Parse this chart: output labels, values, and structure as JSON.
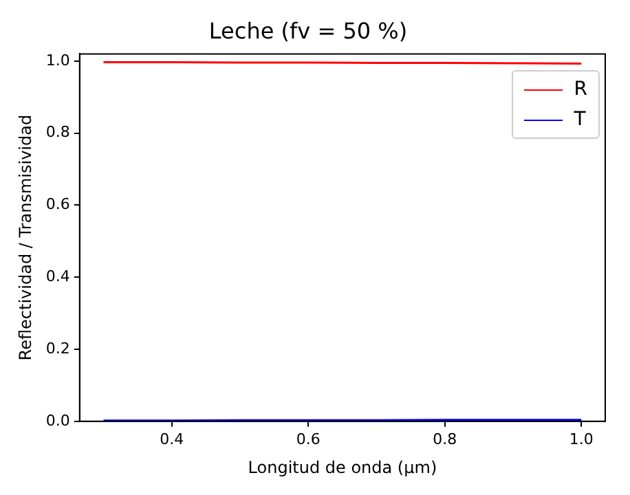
{
  "chart_data": {
    "type": "line",
    "title": "Leche (fv = 50 %)",
    "xlabel": "Longitud de onda (μm)",
    "ylabel": "Reflectividad / Transmisividad",
    "x": [
      0.3,
      0.4,
      0.5,
      0.6,
      0.7,
      0.8,
      0.9,
      1.0
    ],
    "series": [
      {
        "name": "R",
        "color": "#ff0000",
        "values": [
          0.997,
          0.997,
          0.996,
          0.996,
          0.995,
          0.995,
          0.994,
          0.993
        ]
      },
      {
        "name": "T",
        "color": "#0000ff",
        "values": [
          0.002,
          0.002,
          0.003,
          0.003,
          0.003,
          0.004,
          0.004,
          0.004
        ]
      }
    ],
    "xlim": [
      0.265,
      1.035
    ],
    "xticks": [
      0.4,
      0.6,
      0.8,
      {
        "value": 1,
        "label": "1.0"
      }
    ],
    "ylim": [
      0,
      1.02
    ],
    "yticks": [
      {
        "value": 0,
        "label": "0.0"
      },
      0.2,
      0.4,
      0.6,
      0.8,
      {
        "value": 1,
        "label": "1.0"
      }
    ],
    "grid": false,
    "legend": "top right",
    "marker": "none",
    "line_style": "solid"
  }
}
